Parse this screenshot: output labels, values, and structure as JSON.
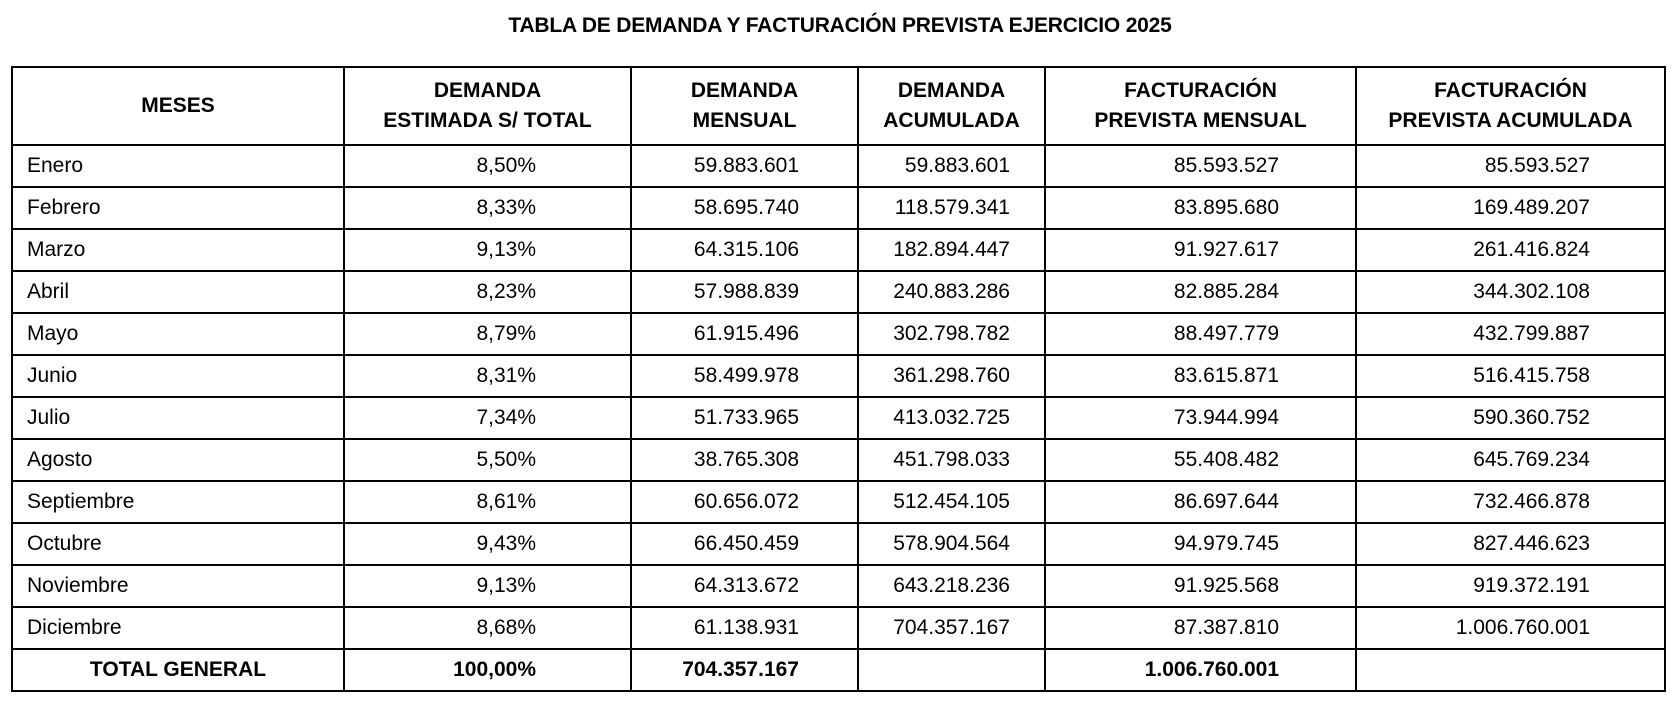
{
  "title": "TABLA DE DEMANDA Y FACTURACIÓN PREVISTA EJERCICIO 2025",
  "headers": [
    [
      "MESES"
    ],
    [
      "DEMANDA",
      "ESTIMADA S/ TOTAL"
    ],
    [
      "DEMANDA",
      "MENSUAL"
    ],
    [
      "DEMANDA",
      "ACUMULADA"
    ],
    [
      "FACTURACIÓN",
      "PREVISTA MENSUAL"
    ],
    [
      "FACTURACIÓN",
      "PREVISTA ACUMULADA"
    ]
  ],
  "rows": [
    [
      "Enero",
      "8,50%",
      "59.883.601",
      "59.883.601",
      "85.593.527",
      "85.593.527"
    ],
    [
      "Febrero",
      "8,33%",
      "58.695.740",
      "118.579.341",
      "83.895.680",
      "169.489.207"
    ],
    [
      "Marzo",
      "9,13%",
      "64.315.106",
      "182.894.447",
      "91.927.617",
      "261.416.824"
    ],
    [
      "Abril",
      "8,23%",
      "57.988.839",
      "240.883.286",
      "82.885.284",
      "344.302.108"
    ],
    [
      "Mayo",
      "8,79%",
      "61.915.496",
      "302.798.782",
      "88.497.779",
      "432.799.887"
    ],
    [
      "Junio",
      "8,31%",
      "58.499.978",
      "361.298.760",
      "83.615.871",
      "516.415.758"
    ],
    [
      "Julio",
      "7,34%",
      "51.733.965",
      "413.032.725",
      "73.944.994",
      "590.360.752"
    ],
    [
      "Agosto",
      "5,50%",
      "38.765.308",
      "451.798.033",
      "55.408.482",
      "645.769.234"
    ],
    [
      "Septiembre",
      "8,61%",
      "60.656.072",
      "512.454.105",
      "86.697.644",
      "732.466.878"
    ],
    [
      "Octubre",
      "9,43%",
      "66.450.459",
      "578.904.564",
      "94.979.745",
      "827.446.623"
    ],
    [
      "Noviembre",
      "9,13%",
      "64.313.672",
      "643.218.236",
      "91.925.568",
      "919.372.191"
    ],
    [
      "Diciembre",
      "8,68%",
      "61.138.931",
      "704.357.167",
      "87.387.810",
      "1.006.760.001"
    ]
  ],
  "total": [
    "TOTAL GENERAL",
    "100,00%",
    "704.357.167",
    "",
    "1.006.760.001",
    ""
  ]
}
